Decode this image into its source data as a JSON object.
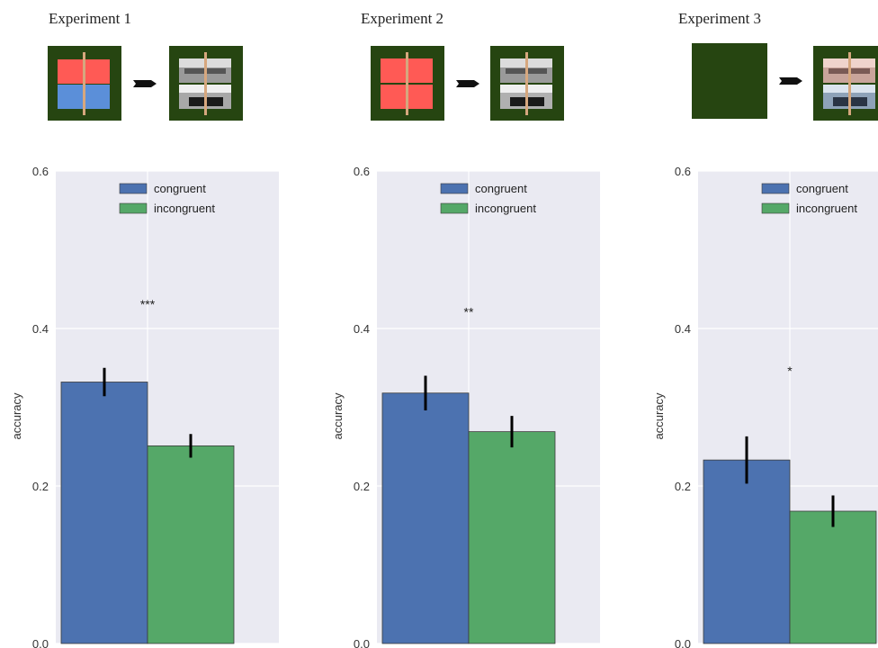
{
  "experiments": [
    {
      "title": "Experiment 1",
      "cue": "color-rects",
      "target": "photos-gray"
    },
    {
      "title": "Experiment 2",
      "cue": "red-rects",
      "target": "photos-gray"
    },
    {
      "title": "Experiment 3",
      "cue": "blank",
      "target": "photos-tinted"
    }
  ],
  "colors": {
    "background": "#eaeaf2",
    "grid": "#ffffff",
    "congruent": "#4c72b0",
    "incongruent": "#55a868",
    "cue_background": "#264511",
    "cue_red": "#ff5a55",
    "cue_blue": "#5b8fd9",
    "divider": "#d6a77e"
  },
  "chart_data": [
    {
      "type": "bar",
      "categories": [
        "congruent",
        "incongruent"
      ],
      "values": [
        0.332,
        0.251
      ],
      "errors": [
        0.018,
        0.015
      ],
      "ylabel": "accuracy",
      "ylim": [
        0.0,
        0.6
      ],
      "yticks": [
        "0.0",
        "0.2",
        "0.4",
        "0.6"
      ],
      "legend": [
        "congruent",
        "incongruent"
      ],
      "legend_position": "top-right",
      "significance": {
        "label": "***",
        "y": 0.43
      },
      "grid": true
    },
    {
      "type": "bar",
      "categories": [
        "congruent",
        "incongruent"
      ],
      "values": [
        0.318,
        0.269
      ],
      "errors": [
        0.022,
        0.02
      ],
      "ylabel": "accuracy",
      "ylim": [
        0.0,
        0.6
      ],
      "yticks": [
        "0.0",
        "0.2",
        "0.4",
        "0.6"
      ],
      "legend": [
        "congruent",
        "incongruent"
      ],
      "legend_position": "top-right",
      "significance": {
        "label": "**",
        "y": 0.42
      },
      "grid": true
    },
    {
      "type": "bar",
      "categories": [
        "congruent",
        "incongruent"
      ],
      "values": [
        0.233,
        0.168
      ],
      "errors": [
        0.03,
        0.02
      ],
      "ylabel": "accuracy",
      "ylim": [
        0.0,
        0.6
      ],
      "yticks": [
        "0.0",
        "0.2",
        "0.4",
        "0.6"
      ],
      "legend": [
        "congruent",
        "incongruent"
      ],
      "legend_position": "top-right",
      "significance": {
        "label": "*",
        "y": 0.345
      },
      "grid": true
    }
  ]
}
